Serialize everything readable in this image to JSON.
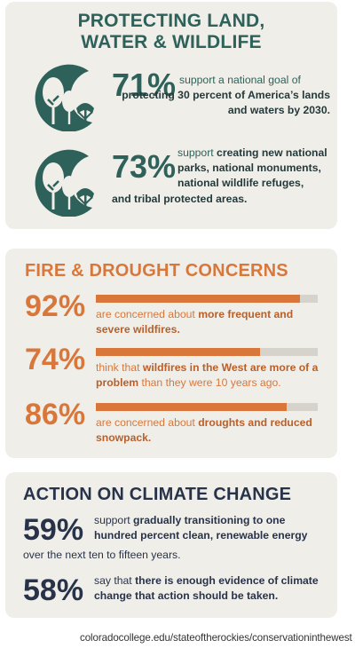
{
  "land": {
    "title_line1": "PROTECTING LAND,",
    "title_line2": "WATER & WILDLIFE",
    "stat1": {
      "value": "71%",
      "pre": "support a national goal of",
      "emphasis": "protecting 30 percent of America’s lands and waters by 2030."
    },
    "stat2": {
      "value": "73%",
      "pre": "support",
      "emphasis": "creating new national parks, national monuments, national wildlife refuges,",
      "post": "and tribal protected areas."
    },
    "icon": "forest-trees-icon",
    "color": "#2e6159"
  },
  "fire": {
    "title": "FIRE & DROUGHT CONCERNS",
    "color": "#d9773a",
    "stats": [
      {
        "value": "92%",
        "fraction": 0.92,
        "pre": "are concerned about",
        "emphasis": "more frequent and severe wildfires."
      },
      {
        "value": "74%",
        "fraction": 0.74,
        "pre": "think that",
        "emphasis": "wildfires in the West are more of a problem",
        "post": "than they were 10 years ago."
      },
      {
        "value": "86%",
        "fraction": 0.86,
        "pre": "are concerned about",
        "emphasis": "droughts and reduced snowpack."
      }
    ]
  },
  "climate": {
    "title": "ACTION ON CLIMATE CHANGE",
    "color": "#28334a",
    "stat1": {
      "value": "59%",
      "pre": "support",
      "emphasis": "gradually transitioning to one hundred percent clean, renewable energy",
      "post": "over the next ten to fifteen years."
    },
    "stat2": {
      "value": "58%",
      "pre": "say that",
      "emphasis": "there is enough evidence of climate change that action should be taken."
    }
  },
  "footer": {
    "url": "coloradocollege.edu/stateoftherockies/conservationinthewest"
  }
}
